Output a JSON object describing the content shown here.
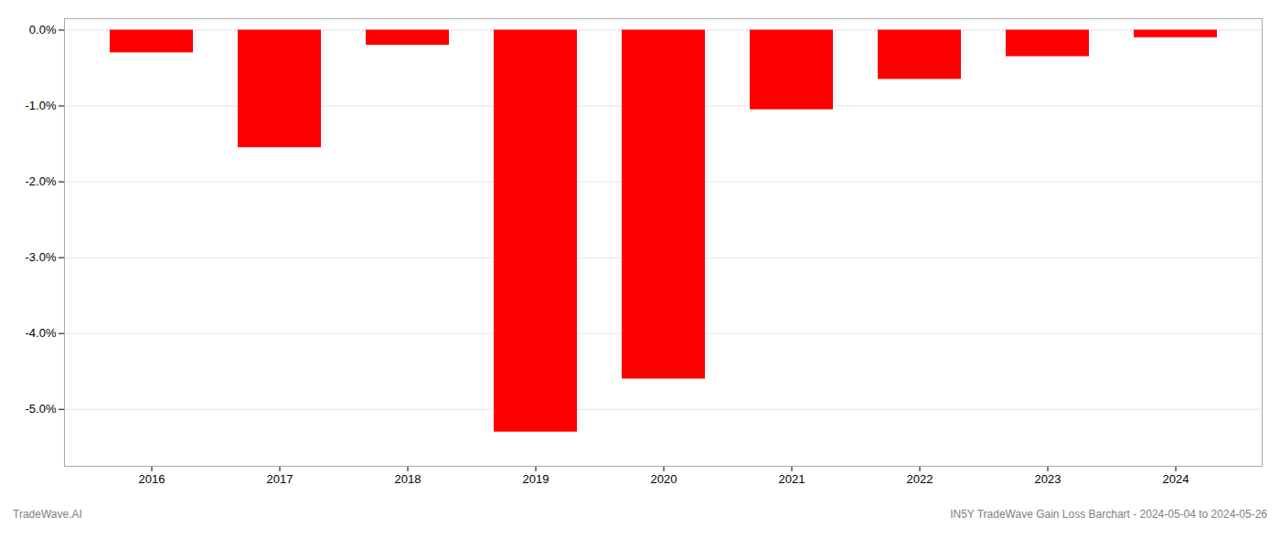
{
  "chart_data": {
    "type": "bar",
    "categories": [
      "2016",
      "2017",
      "2018",
      "2019",
      "2020",
      "2021",
      "2022",
      "2023",
      "2024"
    ],
    "values": [
      -0.003,
      -0.0155,
      -0.002,
      -0.053,
      -0.046,
      -0.0105,
      -0.0065,
      -0.0035,
      -0.001
    ],
    "color": "#ff0000",
    "ylim": [
      -0.0575,
      0.0015
    ],
    "yticks": [
      {
        "value": 0.0,
        "label": "0.0%"
      },
      {
        "value": -0.01,
        "label": "-1.0%"
      },
      {
        "value": -0.02,
        "label": "-2.0%"
      },
      {
        "value": -0.03,
        "label": "-3.0%"
      },
      {
        "value": -0.04,
        "label": "-4.0%"
      },
      {
        "value": -0.05,
        "label": "-5.0%"
      }
    ],
    "grid": true,
    "annotations": [
      "TradeWave.AI",
      "IN5Y TradeWave Gain Loss Barchart - 2024-05-04 to 2024-05-26"
    ]
  }
}
